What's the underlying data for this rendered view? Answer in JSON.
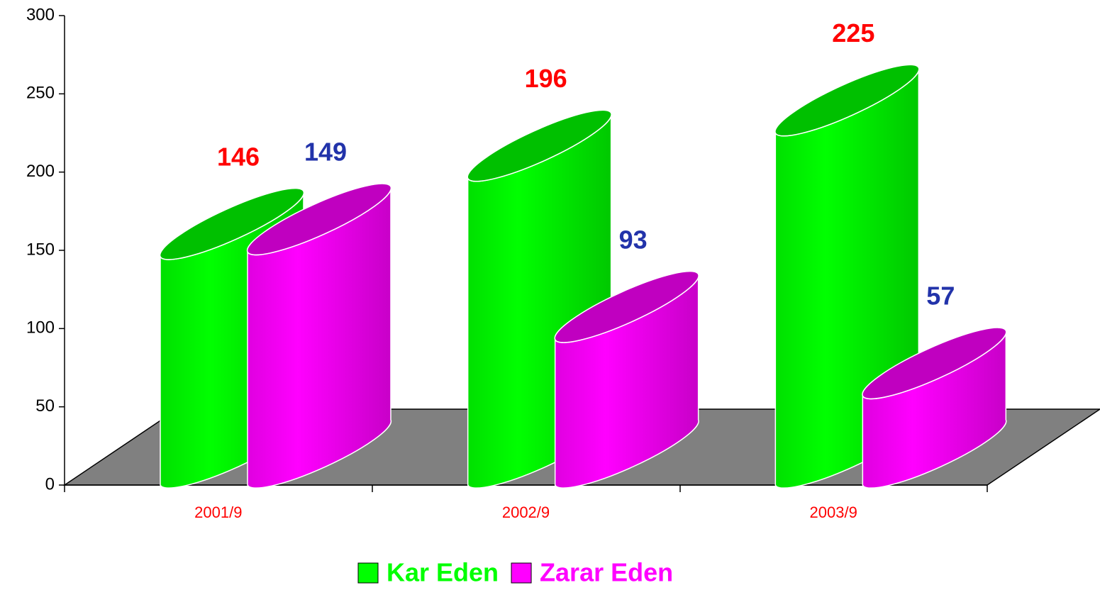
{
  "chart_data": {
    "type": "bar3d",
    "categories": [
      "2001/9",
      "2002/9",
      "2003/9"
    ],
    "series": [
      {
        "name": "Kar Eden",
        "color": "#00ff00",
        "label_color": "#ff0000",
        "values": [
          146,
          196,
          225
        ]
      },
      {
        "name": "Zarar Eden",
        "color": "#ff00ff",
        "label_color": "#2233aa",
        "values": [
          149,
          93,
          57
        ]
      }
    ],
    "category_label_color": "#ff0000",
    "ylim": [
      0,
      300
    ],
    "yticks": [
      0,
      50,
      100,
      150,
      200,
      250,
      300
    ]
  }
}
